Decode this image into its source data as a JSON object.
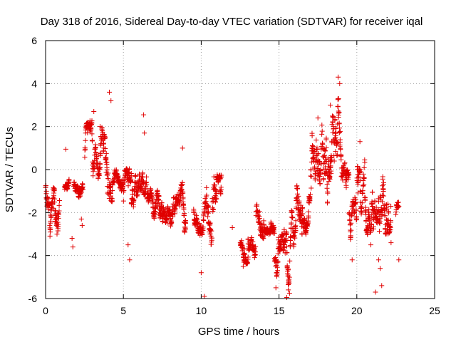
{
  "chart_data": {
    "type": "scatter",
    "title": "Day 318 of 2016, Sidereal Day-to-day VTEC variation (SDTVAR) for receiver iqal",
    "xlabel": "GPS time / hours",
    "ylabel": "SDTVAR / TECUs",
    "xlim": [
      0,
      25
    ],
    "ylim": [
      -6,
      6
    ],
    "xticks": [
      0,
      5,
      10,
      15,
      20,
      25
    ],
    "yticks": [
      -6,
      -4,
      -2,
      0,
      2,
      4,
      6
    ],
    "grid": true,
    "marker": "+",
    "color": "#e00000",
    "series": [
      {
        "name": "SDTVAR",
        "segments": [
          {
            "x0": 0.0,
            "x1": 0.25,
            "lo": -2.2,
            "hi": 0.0
          },
          {
            "x0": 0.25,
            "x1": 0.9,
            "lo": -3.6,
            "hi": -0.8
          },
          {
            "x0": 1.2,
            "x1": 1.5,
            "lo": -1.1,
            "hi": -0.4
          },
          {
            "x0": 1.8,
            "x1": 2.1,
            "lo": -1.3,
            "hi": -0.2
          },
          {
            "x0": 2.1,
            "x1": 2.4,
            "lo": -2.0,
            "hi": -0.6
          },
          {
            "x0": 2.5,
            "x1": 3.0,
            "lo": -0.8,
            "hi": 2.2
          },
          {
            "x0": 3.0,
            "x1": 3.5,
            "lo": -0.5,
            "hi": 1.5
          },
          {
            "x0": 3.5,
            "x1": 3.9,
            "lo": -1.0,
            "hi": 2.0
          },
          {
            "x0": 3.9,
            "x1": 4.3,
            "lo": -1.5,
            "hi": 3.0
          },
          {
            "x0": 4.3,
            "x1": 5.0,
            "lo": -1.5,
            "hi": 0.0
          },
          {
            "x0": 5.0,
            "x1": 5.5,
            "lo": -2.5,
            "hi": 0.0
          },
          {
            "x0": 5.5,
            "x1": 6.5,
            "lo": -2.7,
            "hi": -0.2
          },
          {
            "x0": 6.5,
            "x1": 7.2,
            "lo": -2.5,
            "hi": -0.8
          },
          {
            "x0": 7.2,
            "x1": 8.0,
            "lo": -2.5,
            "hi": -0.8
          },
          {
            "x0": 8.0,
            "x1": 9.0,
            "lo": -3.0,
            "hi": -0.6
          },
          {
            "x0": 9.5,
            "x1": 10.2,
            "lo": -3.0,
            "hi": -1.0
          },
          {
            "x0": 10.2,
            "x1": 10.7,
            "lo": -3.5,
            "hi": -0.5
          },
          {
            "x0": 10.7,
            "x1": 11.3,
            "lo": -3.8,
            "hi": -0.2
          },
          {
            "x0": 12.5,
            "x1": 13.0,
            "lo": -4.4,
            "hi": -2.5
          },
          {
            "x0": 13.0,
            "x1": 13.5,
            "lo": -4.0,
            "hi": -2.5
          },
          {
            "x0": 13.5,
            "x1": 14.0,
            "lo": -3.3,
            "hi": -1.5
          },
          {
            "x0": 14.0,
            "x1": 14.7,
            "lo": -3.0,
            "hi": -2.0
          },
          {
            "x0": 14.7,
            "x1": 15.3,
            "lo": -5.5,
            "hi": -3.0
          },
          {
            "x0": 15.3,
            "x1": 15.8,
            "lo": -5.9,
            "hi": -1.5
          },
          {
            "x0": 15.8,
            "x1": 16.5,
            "lo": -4.0,
            "hi": -0.5
          },
          {
            "x0": 16.5,
            "x1": 17.0,
            "lo": -3.0,
            "hi": -0.5
          },
          {
            "x0": 17.0,
            "x1": 17.5,
            "lo": -3.0,
            "hi": 2.0
          },
          {
            "x0": 17.5,
            "x1": 18.5,
            "lo": -2.5,
            "hi": 2.5
          },
          {
            "x0": 18.5,
            "x1": 19.0,
            "lo": -1.0,
            "hi": 4.2
          },
          {
            "x0": 19.0,
            "x1": 19.5,
            "lo": -2.0,
            "hi": 0.5
          },
          {
            "x0": 19.5,
            "x1": 20.0,
            "lo": -3.5,
            "hi": -1.0
          },
          {
            "x0": 20.0,
            "x1": 20.5,
            "lo": -2.0,
            "hi": 1.0
          },
          {
            "x0": 20.5,
            "x1": 21.0,
            "lo": -3.0,
            "hi": 0.0
          },
          {
            "x0": 21.0,
            "x1": 21.5,
            "lo": -3.5,
            "hi": -0.5
          },
          {
            "x0": 21.5,
            "x1": 22.2,
            "lo": -3.0,
            "hi": 0.9
          },
          {
            "x0": 22.5,
            "x1": 22.7,
            "lo": -3.0,
            "hi": -1.5
          }
        ],
        "points": [
          [
            0.5,
            -1.8
          ],
          [
            1.3,
            0.95
          ],
          [
            1.7,
            -3.2
          ],
          [
            1.75,
            -3.6
          ],
          [
            2.3,
            -2.3
          ],
          [
            2.35,
            -2.6
          ],
          [
            3.1,
            2.7
          ],
          [
            3.5,
            2.0
          ],
          [
            4.1,
            3.6
          ],
          [
            4.2,
            3.2
          ],
          [
            5.3,
            -3.5
          ],
          [
            5.4,
            -4.2
          ],
          [
            6.3,
            2.55
          ],
          [
            6.35,
            1.7
          ],
          [
            8.8,
            1.0
          ],
          [
            10.0,
            -4.8
          ],
          [
            9.0,
            -2.5
          ],
          [
            10.2,
            -5.9
          ],
          [
            12.0,
            -2.7
          ],
          [
            12.7,
            -4.5
          ],
          [
            14.5,
            -2.5
          ],
          [
            14.8,
            -5.5
          ],
          [
            15.5,
            -5.95
          ],
          [
            15.6,
            -5.6
          ],
          [
            17.5,
            2.4
          ],
          [
            18.3,
            3.0
          ],
          [
            18.5,
            2.0
          ],
          [
            18.8,
            4.3
          ],
          [
            18.9,
            4.0
          ],
          [
            19.7,
            -4.2
          ],
          [
            20.2,
            1.3
          ],
          [
            20.9,
            -3.5
          ],
          [
            21.4,
            -4.2
          ],
          [
            21.5,
            -4.6
          ],
          [
            22.0,
            -1.6
          ],
          [
            21.2,
            -5.7
          ],
          [
            21.6,
            -5.4
          ],
          [
            22.2,
            -3.4
          ],
          [
            22.7,
            -4.2
          ],
          [
            21.1,
            -2.2
          ]
        ]
      }
    ]
  }
}
